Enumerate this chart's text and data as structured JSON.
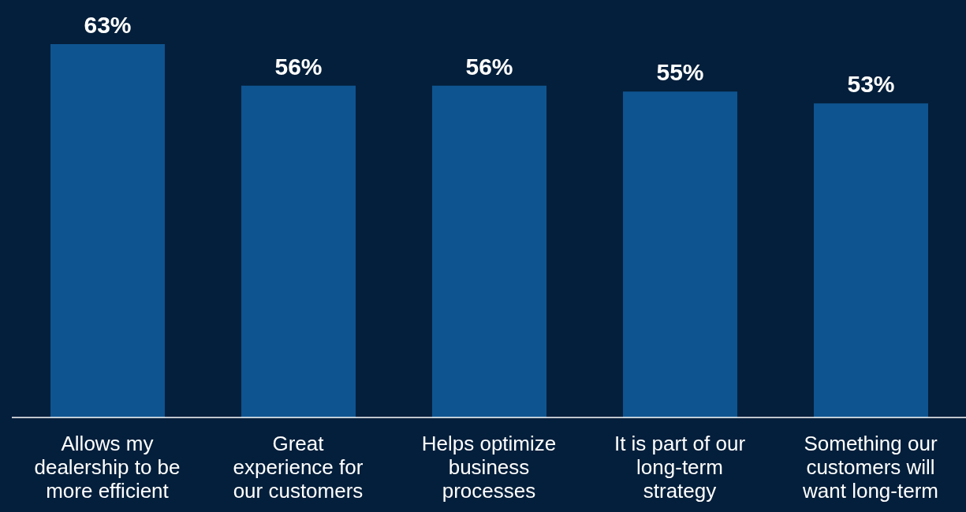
{
  "chart_data": {
    "type": "bar",
    "categories": [
      "Allows my\ndealership to be\nmore efficient",
      "Great\nexperience for\nour customers",
      "Helps optimize\nbusiness\nprocesses",
      "It is part of our\nlong-term\nstrategy",
      "Something our\ncustomers will\nwant long-term"
    ],
    "values": [
      63,
      56,
      56,
      55,
      53
    ],
    "value_labels": [
      "63%",
      "56%",
      "56%",
      "55%",
      "53%"
    ],
    "color": "#0e5490",
    "tick_labels": "x",
    "grid": false,
    "legend": false
  }
}
